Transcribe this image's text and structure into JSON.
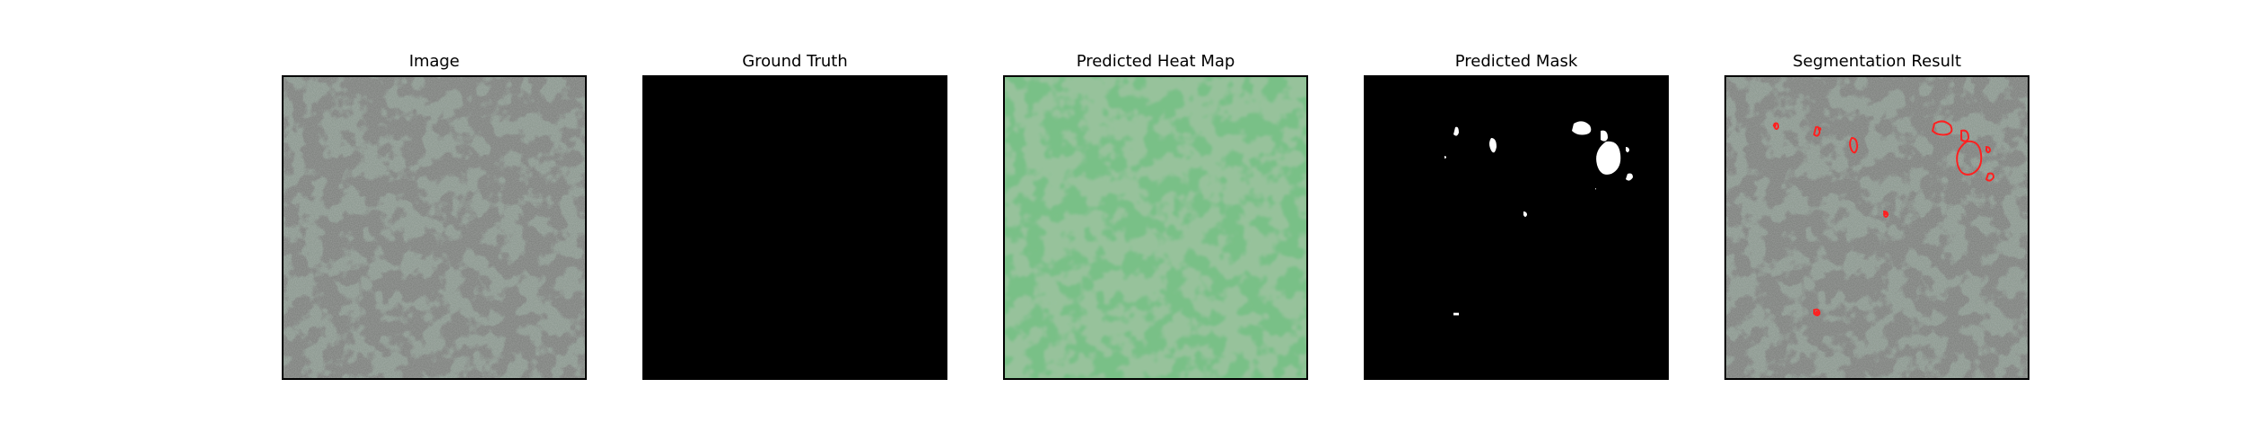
{
  "panels": [
    {
      "title": "Image"
    },
    {
      "title": "Ground Truth"
    },
    {
      "title": "Predicted Heat Map"
    },
    {
      "title": "Predicted Mask"
    },
    {
      "title": "Segmentation Result"
    }
  ],
  "colors": {
    "texture_base": "#8e9a92",
    "texture_dark": "#3a3a3a",
    "heatmap_base": "#79c087",
    "heatmap_dark": "#4f8a53",
    "mask_background": "#000000",
    "mask_foreground": "#ffffff",
    "contour": "#ff2020"
  }
}
